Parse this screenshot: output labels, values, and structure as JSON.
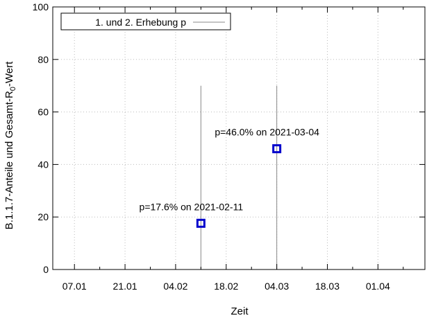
{
  "chart_data": {
    "type": "scatter",
    "xlabel": "Zeit",
    "ylabel_parts": {
      "before": "B.1.1.7-Anteile und Gesamt-R",
      "sub": "0",
      "after": "-Wert"
    },
    "ylim": [
      0,
      100
    ],
    "xlim": [
      "2021-01-01",
      "2021-04-14"
    ],
    "yticks": [
      0,
      20,
      40,
      60,
      80,
      100
    ],
    "xticks": [
      {
        "date": "2021-01-07",
        "label": "07.01"
      },
      {
        "date": "2021-01-21",
        "label": "21.01"
      },
      {
        "date": "2021-02-04",
        "label": "04.02"
      },
      {
        "date": "2021-02-18",
        "label": "18.02"
      },
      {
        "date": "2021-03-04",
        "label": "04.03"
      },
      {
        "date": "2021-03-18",
        "label": "18.03"
      },
      {
        "date": "2021-04-01",
        "label": "01.04"
      }
    ],
    "grid": true,
    "legend": {
      "position": "top-left",
      "label": "1. und 2. Erhebung p"
    },
    "series": [
      {
        "name": "1. und 2. Erhebung p",
        "color": "#0000cc",
        "points": [
          {
            "x": "2021-02-11",
            "y": 17.6
          },
          {
            "x": "2021-03-04",
            "y": 46.0
          }
        ]
      }
    ],
    "vlines": [
      {
        "x": "2021-02-11",
        "y_top": 70,
        "color": "#888888"
      },
      {
        "x": "2021-03-04",
        "y_top": 70,
        "color": "#888888"
      }
    ],
    "annotations": [
      {
        "text": "p=17.6% on 2021-02-11",
        "x": "2021-02-11",
        "y": 17.6
      },
      {
        "text": "p=46.0% on 2021-03-04",
        "x": "2021-03-04",
        "y": 46.0
      }
    ]
  }
}
